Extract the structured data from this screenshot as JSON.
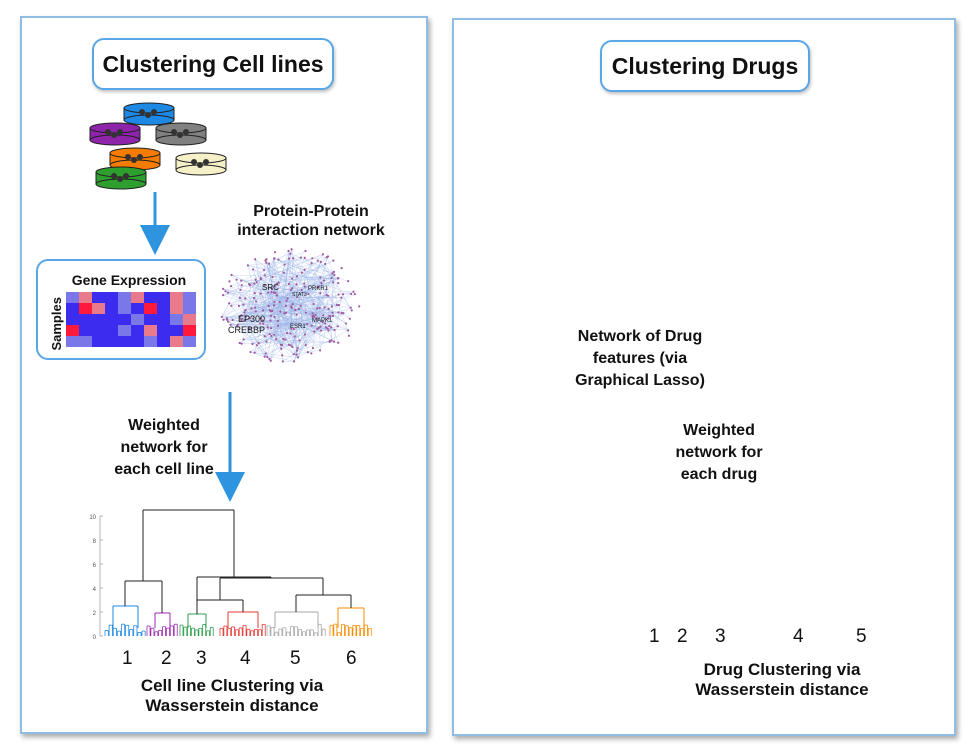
{
  "left": {
    "title": "Clustering Cell lines",
    "gene_expression_title": "Gene Expression",
    "samples_label": "Samples",
    "ppi_title": "Protein-Protein interaction network",
    "ppi_node_labels": [
      "SRC",
      "EP300",
      "CREBBP",
      "ESR1",
      "PRKR1",
      "STAT3",
      "MAPK1"
    ],
    "weighted_label": "Weighted network for each cell line",
    "dendrogram_y_ticks": [
      "0",
      "2",
      "4",
      "6",
      "8",
      "10"
    ],
    "cluster_numbers": [
      "1",
      "2",
      "3",
      "4",
      "5",
      "6"
    ],
    "caption": "Cell line Clustering via Wasserstein distance"
  },
  "right": {
    "title": "Clustering Drugs",
    "network_label": "Network of Drug features (via Graphical Lasso)",
    "weighted_label": "Weighted network for each drug",
    "cluster_numbers": [
      "1",
      "2",
      "3",
      "4",
      "5"
    ],
    "caption": "Drug Clustering via Wasserstein distance"
  },
  "colors": {
    "arrow": "#2f94e0",
    "border": "#5aa6e6",
    "dish_colors": [
      "#1e88e5",
      "#8e24aa",
      "#808080",
      "#f57c00",
      "#f5f0c8",
      "#2e9e2e"
    ],
    "left_clusters": [
      "#1e88e5",
      "#9c27b0",
      "#2e9e4f",
      "#e53935",
      "#a8a8a8",
      "#fb8c00"
    ],
    "right_clusters": [
      "#c77dd6",
      "#fbb469",
      "#5aa6e6",
      "#b0b0b0",
      "#ef6f6f"
    ]
  }
}
